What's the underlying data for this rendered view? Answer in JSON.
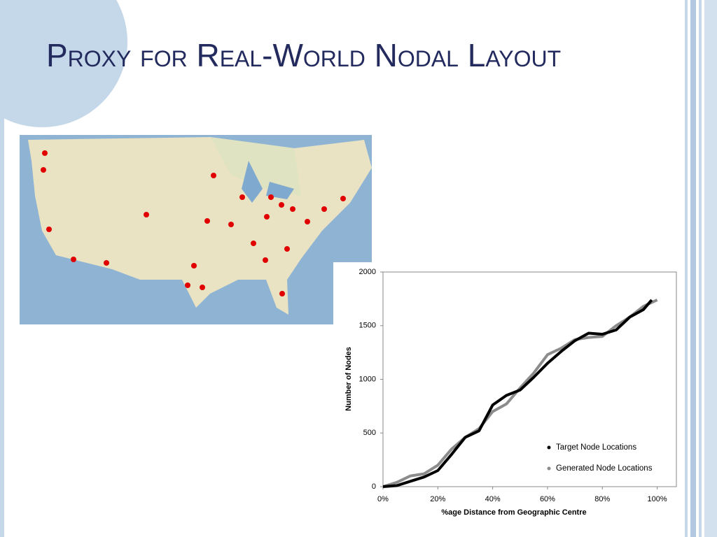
{
  "slide_title": "Proxy for Real-World Nodal Layout",
  "chart_data": {
    "type": "line",
    "xlabel": "%age Distance from Geographic Centre",
    "ylabel": "Number of Nodes",
    "xlim": [
      0,
      107
    ],
    "ylim": [
      0,
      2000
    ],
    "xticks": [
      {
        "value": 0,
        "label": "0%"
      },
      {
        "value": 20,
        "label": "20%"
      },
      {
        "value": 40,
        "label": "40%"
      },
      {
        "value": 60,
        "label": "60%"
      },
      {
        "value": 80,
        "label": "80%"
      },
      {
        "value": 100,
        "label": "100%"
      }
    ],
    "yticks": [
      0,
      500,
      1000,
      1500,
      2000
    ],
    "legend": "bottom-right",
    "series": [
      {
        "name": "Target Node Locations",
        "color": "#000000",
        "x": [
          0,
          5,
          10,
          15,
          20,
          25,
          30,
          35,
          40,
          45,
          50,
          55,
          60,
          65,
          70,
          75,
          80,
          85,
          90,
          95,
          98
        ],
        "values": [
          0,
          10,
          50,
          90,
          150,
          300,
          460,
          520,
          760,
          850,
          900,
          1020,
          1150,
          1260,
          1360,
          1430,
          1420,
          1460,
          1580,
          1650,
          1740
        ]
      },
      {
        "name": "Generated Node Locations",
        "color": "#8c8c8c",
        "x": [
          0,
          5,
          10,
          15,
          20,
          25,
          30,
          35,
          40,
          45,
          50,
          55,
          60,
          65,
          70,
          75,
          80,
          85,
          90,
          95,
          100
        ],
        "values": [
          0,
          40,
          100,
          120,
          200,
          350,
          460,
          540,
          700,
          770,
          920,
          1060,
          1230,
          1290,
          1370,
          1390,
          1400,
          1500,
          1580,
          1680,
          1740
        ]
      }
    ]
  }
}
